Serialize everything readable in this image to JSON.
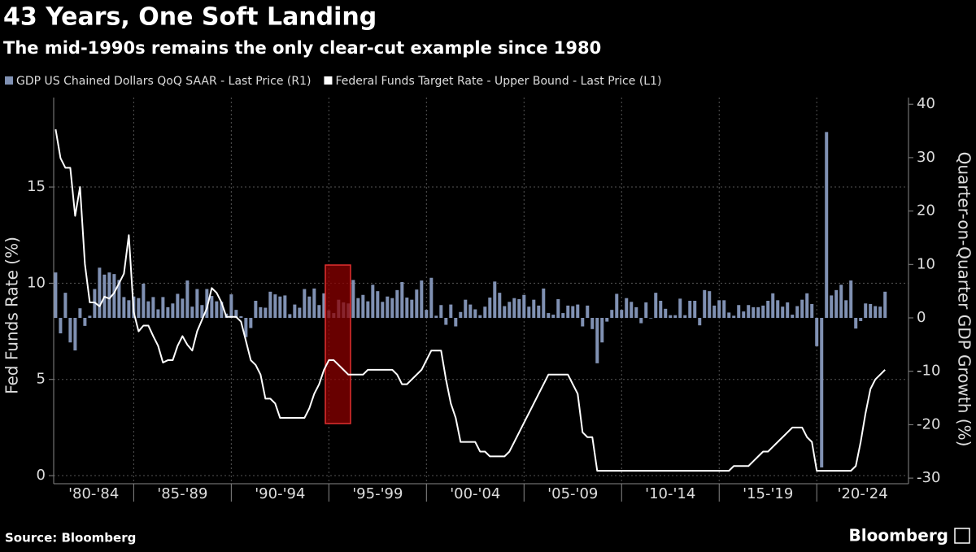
{
  "chart_data": {
    "type": "combo",
    "title": "43 Years, One Soft Landing",
    "subtitle": "The mid-1990s remains the only clear-cut example since 1980",
    "y_label": "Fed Funds Rate (%)",
    "y2_label": "Quarter-on-Quarter GDP Growth (%)",
    "source": "Source: Bloomberg",
    "logo_text": "Bloomberg",
    "grid": true,
    "xlim": [
      1980.9,
      2024.7
    ],
    "xticks": [
      {
        "value": 1980,
        "label": "'80-'84"
      },
      {
        "value": 1985,
        "label": "'85-'89"
      },
      {
        "value": 1990,
        "label": "'90-'94"
      },
      {
        "value": 1995,
        "label": "'95-'99"
      },
      {
        "value": 2000,
        "label": "'00-'04"
      },
      {
        "value": 2005,
        "label": "'05-'09"
      },
      {
        "value": 2010,
        "label": "'10-'14"
      },
      {
        "value": 2015,
        "label": "'15-'19"
      },
      {
        "value": 2020,
        "label": "'20-'24"
      }
    ],
    "ylim": [
      -0.42,
      19.65
    ],
    "yticks": [
      0,
      5,
      10,
      15
    ],
    "y2lim": [
      -31.05,
      41.25
    ],
    "y2ticks": [
      -30,
      -20,
      -10,
      0,
      10,
      20,
      30,
      40
    ],
    "x": [
      1981,
      1981.25,
      1981.5,
      1981.75,
      1982,
      1982.25,
      1982.5,
      1982.75,
      1983,
      1983.25,
      1983.5,
      1983.75,
      1984,
      1984.25,
      1984.5,
      1984.75,
      1985,
      1985.25,
      1985.5,
      1985.75,
      1986,
      1986.25,
      1986.5,
      1986.75,
      1987,
      1987.25,
      1987.5,
      1987.75,
      1988,
      1988.25,
      1988.5,
      1988.75,
      1989,
      1989.25,
      1989.5,
      1989.75,
      1990,
      1990.25,
      1990.5,
      1990.75,
      1991,
      1991.25,
      1991.5,
      1991.75,
      1992,
      1992.25,
      1992.5,
      1992.75,
      1993,
      1993.25,
      1993.5,
      1993.75,
      1994,
      1994.25,
      1994.5,
      1994.75,
      1995,
      1995.25,
      1995.5,
      1995.75,
      1996,
      1996.25,
      1996.5,
      1996.75,
      1997,
      1997.25,
      1997.5,
      1997.75,
      1998,
      1998.25,
      1998.5,
      1998.75,
      1999,
      1999.25,
      1999.5,
      1999.75,
      2000,
      2000.25,
      2000.5,
      2000.75,
      2001,
      2001.25,
      2001.5,
      2001.75,
      2002,
      2002.25,
      2002.5,
      2002.75,
      2003,
      2003.25,
      2003.5,
      2003.75,
      2004,
      2004.25,
      2004.5,
      2004.75,
      2005,
      2005.25,
      2005.5,
      2005.75,
      2006,
      2006.25,
      2006.5,
      2006.75,
      2007,
      2007.25,
      2007.5,
      2007.75,
      2008,
      2008.25,
      2008.5,
      2008.75,
      2009,
      2009.25,
      2009.5,
      2009.75,
      2010,
      2010.25,
      2010.5,
      2010.75,
      2011,
      2011.25,
      2011.5,
      2011.75,
      2012,
      2012.25,
      2012.5,
      2012.75,
      2013,
      2013.25,
      2013.5,
      2013.75,
      2014,
      2014.25,
      2014.5,
      2014.75,
      2015,
      2015.25,
      2015.5,
      2015.75,
      2016,
      2016.25,
      2016.5,
      2016.75,
      2017,
      2017.25,
      2017.5,
      2017.75,
      2018,
      2018.25,
      2018.5,
      2018.75,
      2019,
      2019.25,
      2019.5,
      2019.75,
      2020,
      2020.25,
      2020.5,
      2020.75,
      2021,
      2021.25,
      2021.5,
      2021.75,
      2022,
      2022.25,
      2022.5,
      2022.75,
      2023,
      2023.25,
      2023.5
    ],
    "series": [
      {
        "name": "GDP US Chained Dollars QoQ SAAR - Last Price (R1)",
        "type": "bar",
        "axis": "y2",
        "color": "#8091b3",
        "values": [
          8.5,
          -2.9,
          4.7,
          -4.6,
          -6.1,
          1.8,
          -1.5,
          0.4,
          5.4,
          9.4,
          8.1,
          8.5,
          8.2,
          7.1,
          3.9,
          3.3,
          4.0,
          3.7,
          6.4,
          3.1,
          3.9,
          1.6,
          3.9,
          2.0,
          2.7,
          4.5,
          3.6,
          7.0,
          2.1,
          5.4,
          2.4,
          5.4,
          4.1,
          3.1,
          3.0,
          0.8,
          4.4,
          1.5,
          0.3,
          -3.6,
          -1.9,
          3.2,
          2.0,
          1.9,
          4.9,
          4.4,
          4.0,
          4.2,
          0.7,
          2.5,
          1.9,
          5.4,
          4.0,
          5.5,
          2.4,
          4.6,
          1.4,
          0.9,
          3.4,
          2.9,
          2.7,
          7.1,
          3.7,
          4.3,
          3.1,
          6.2,
          5.0,
          3.0,
          4.0,
          3.7,
          5.2,
          6.7,
          3.8,
          3.4,
          5.3,
          7.0,
          1.5,
          7.5,
          0.4,
          2.4,
          -1.3,
          2.5,
          -1.6,
          1.1,
          3.4,
          2.5,
          1.6,
          0.5,
          2.1,
          3.8,
          6.8,
          4.7,
          2.2,
          3.0,
          3.7,
          3.5,
          4.3,
          2.1,
          3.4,
          2.3,
          5.5,
          0.9,
          0.6,
          3.5,
          0.9,
          2.3,
          2.2,
          2.5,
          -1.6,
          2.3,
          -2.1,
          -8.5,
          -4.6,
          -0.7,
          1.5,
          4.5,
          1.5,
          3.7,
          3.0,
          2.0,
          -1.0,
          2.9,
          -0.1,
          4.7,
          3.2,
          1.7,
          0.5,
          0.5,
          3.6,
          0.5,
          3.2,
          3.2,
          -1.4,
          5.2,
          5.0,
          2.3,
          3.3,
          3.3,
          1.0,
          0.4,
          2.4,
          1.2,
          2.4,
          2.0,
          2.0,
          2.3,
          3.2,
          4.6,
          3.3,
          2.1,
          2.9,
          0.6,
          2.2,
          3.4,
          4.6,
          2.6,
          -5.3,
          -28.0,
          34.8,
          4.2,
          5.2,
          6.2,
          3.3,
          7.0,
          -2.0,
          -0.6,
          2.7,
          2.6,
          2.2,
          2.1,
          4.9
        ]
      },
      {
        "name": "Federal Funds Target Rate - Upper Bound - Last Price (L1)",
        "type": "line",
        "axis": "y",
        "color": "#ffffff",
        "values": [
          18,
          16.5,
          16,
          16,
          13.5,
          15,
          11,
          9,
          9,
          8.8,
          9.3,
          9.2,
          9.5,
          10,
          10.5,
          12.5,
          8.5,
          7.5,
          7.8,
          7.8,
          7.25,
          6.75,
          5.875,
          6,
          6,
          6.75,
          7.25,
          6.8,
          6.5,
          7.5,
          8.1,
          8.7,
          9.75,
          9.5,
          9,
          8.25,
          8.25,
          8.25,
          8,
          7,
          6,
          5.75,
          5.25,
          4,
          4,
          3.75,
          3,
          3,
          3,
          3,
          3,
          3,
          3.5,
          4.25,
          4.75,
          5.5,
          6,
          6,
          5.75,
          5.5,
          5.25,
          5.25,
          5.25,
          5.25,
          5.5,
          5.5,
          5.5,
          5.5,
          5.5,
          5.5,
          5.25,
          4.75,
          4.75,
          5,
          5.25,
          5.5,
          6,
          6.5,
          6.5,
          6.5,
          5,
          3.75,
          3,
          1.75,
          1.75,
          1.75,
          1.75,
          1.25,
          1.25,
          1,
          1,
          1,
          1,
          1.25,
          1.75,
          2.25,
          2.75,
          3.25,
          3.75,
          4.25,
          4.75,
          5.25,
          5.25,
          5.25,
          5.25,
          5.25,
          4.75,
          4.25,
          2.25,
          2,
          2,
          0.25,
          0.25,
          0.25,
          0.25,
          0.25,
          0.25,
          0.25,
          0.25,
          0.25,
          0.25,
          0.25,
          0.25,
          0.25,
          0.25,
          0.25,
          0.25,
          0.25,
          0.25,
          0.25,
          0.25,
          0.25,
          0.25,
          0.25,
          0.25,
          0.25,
          0.25,
          0.25,
          0.25,
          0.5,
          0.5,
          0.5,
          0.5,
          0.75,
          1,
          1.25,
          1.25,
          1.5,
          1.75,
          2,
          2.25,
          2.5,
          2.5,
          2.5,
          2,
          1.75,
          0.25,
          0.25,
          0.25,
          0.25,
          0.25,
          0.25,
          0.25,
          0.25,
          0.5,
          1.75,
          3.25,
          4.5,
          5,
          5.25,
          5.5
        ]
      }
    ]
  }
}
